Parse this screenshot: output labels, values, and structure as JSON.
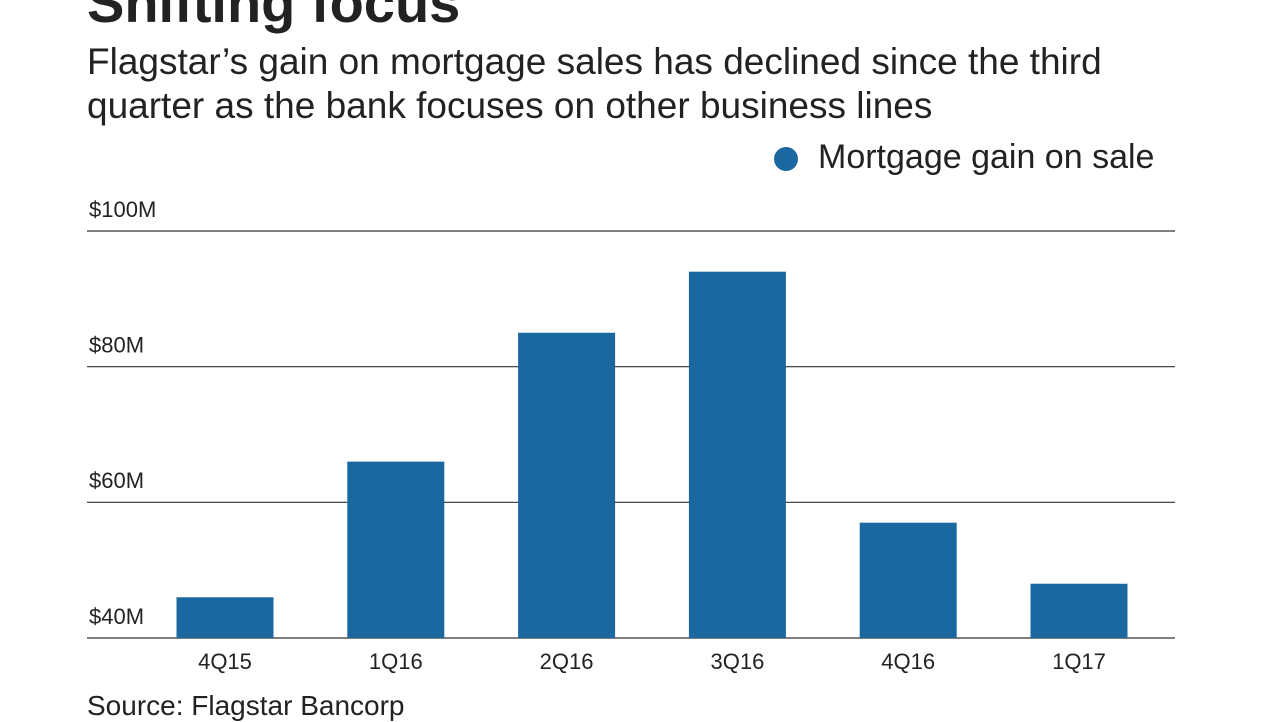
{
  "chart_data": {
    "type": "bar",
    "title": "Shifting focus",
    "subtitle": "Flagstar’s gain on mortgage sales has declined since the third quarter as the bank focuses on other business lines",
    "source": "Source: Flagstar Bancorp",
    "categories": [
      "4Q15",
      "1Q16",
      "2Q16",
      "3Q16",
      "4Q16",
      "1Q17"
    ],
    "series": [
      {
        "name": "Mortgage gain on sale",
        "color": "#1b679f",
        "values": [
          46,
          66,
          85,
          94,
          57,
          48
        ]
      }
    ],
    "ylim": [
      40,
      100
    ],
    "yticks": [
      {
        "value": 40,
        "label": "$40M"
      },
      {
        "value": 60,
        "label": "$60M"
      },
      {
        "value": 80,
        "label": "$80M"
      },
      {
        "value": 100,
        "label": "$100M"
      }
    ],
    "grid": true,
    "legend": "top-right"
  }
}
